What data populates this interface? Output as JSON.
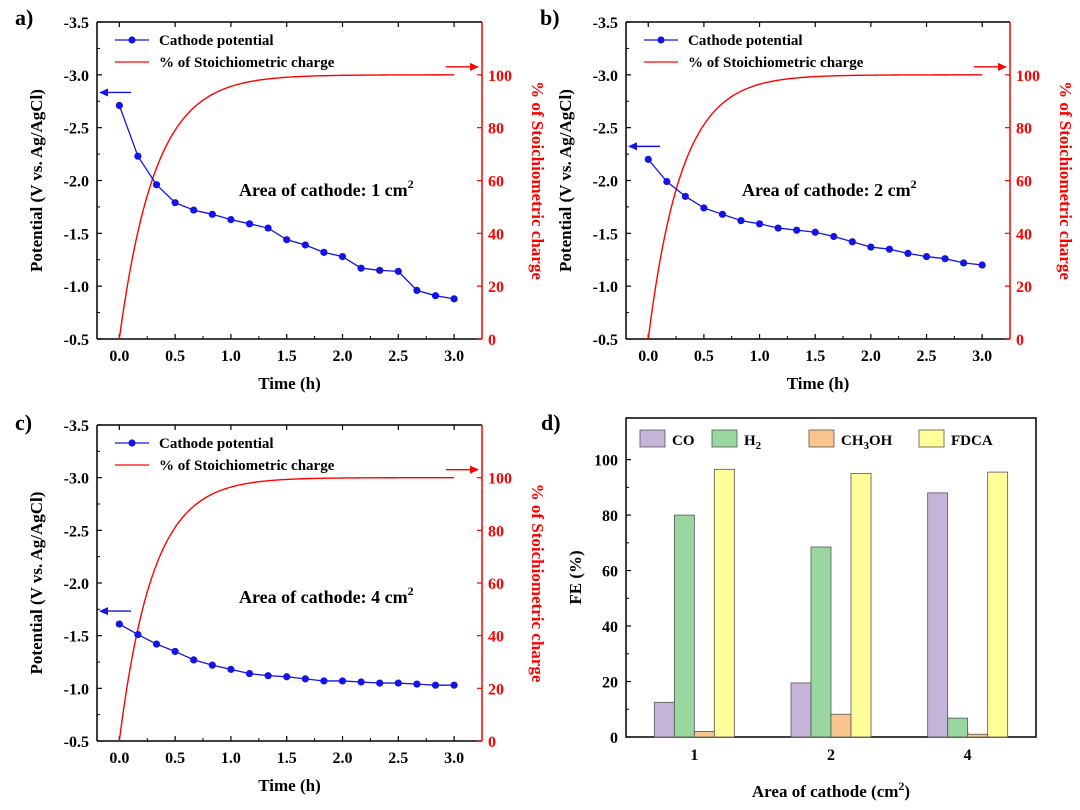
{
  "chart_data": [
    {
      "type": "line",
      "panel_label": "a)",
      "xlabel": "Time (h)",
      "ylabel_left": "Potential (V vs. Ag/AgCl)",
      "ylabel_right": "% of Stoichiometric charge",
      "xlim": [
        -0.2,
        3.25
      ],
      "ylim_left": [
        -0.5,
        -3.5
      ],
      "ylim_right": [
        0,
        120
      ],
      "x_ticks": [
        "0.0",
        "0.5",
        "1.0",
        "1.5",
        "2.0",
        "2.5",
        "3.0"
      ],
      "y_ticks_left": [
        "-0.5",
        "-1.0",
        "-1.5",
        "-2.0",
        "-2.5",
        "-3.0",
        "-3.5"
      ],
      "y_ticks_right": [
        "0",
        "20",
        "40",
        "60",
        "80",
        "100"
      ],
      "annotation": {
        "text": "Area of cathode:  1 cm",
        "sup": "2"
      },
      "legend": [
        "Cathode potential",
        "% of Stoichiometric charge"
      ],
      "series": [
        {
          "name": "Cathode potential",
          "axis": "left",
          "color": "#1414e6",
          "x": [
            0,
            0.1667,
            0.3333,
            0.5,
            0.6667,
            0.8333,
            1.0,
            1.1667,
            1.3333,
            1.5,
            1.6667,
            1.8333,
            2.0,
            2.1667,
            2.3333,
            2.5,
            2.6667,
            2.8333,
            3.0
          ],
          "y": [
            -2.71,
            -2.23,
            -1.96,
            -1.79,
            -1.72,
            -1.68,
            -1.63,
            -1.59,
            -1.55,
            -1.44,
            -1.39,
            -1.32,
            -1.28,
            -1.17,
            -1.15,
            -1.14,
            -0.96,
            -0.91,
            -0.88
          ]
        },
        {
          "name": "% of Stoichiometric charge",
          "axis": "right",
          "color": "#ff0000",
          "curve": "100*(1-exp(-t/0.32))",
          "t_max": 3.0
        }
      ]
    },
    {
      "type": "line",
      "panel_label": "b)",
      "xlabel": "Time (h)",
      "ylabel_left": "Potential (V vs. Ag/AgCl)",
      "ylabel_right": "% of Stoichiometric charge",
      "xlim": [
        -0.2,
        3.25
      ],
      "ylim_left": [
        -0.5,
        -3.5
      ],
      "ylim_right": [
        0,
        120
      ],
      "x_ticks": [
        "0.0",
        "0.5",
        "1.0",
        "1.5",
        "2.0",
        "2.5",
        "3.0"
      ],
      "y_ticks_left": [
        "-0.5",
        "-1.0",
        "-1.5",
        "-2.0",
        "-2.5",
        "-3.0",
        "-3.5"
      ],
      "y_ticks_right": [
        "0",
        "20",
        "40",
        "60",
        "80",
        "100"
      ],
      "annotation": {
        "text": "Area of cathode:  2 cm",
        "sup": "2"
      },
      "legend": [
        "Cathode potential",
        "% of Stoichiometric charge"
      ],
      "series": [
        {
          "name": "Cathode potential",
          "axis": "left",
          "color": "#1414e6",
          "x": [
            0,
            0.1667,
            0.3333,
            0.5,
            0.6667,
            0.8333,
            1.0,
            1.1667,
            1.3333,
            1.5,
            1.6667,
            1.8333,
            2.0,
            2.1667,
            2.3333,
            2.5,
            2.6667,
            2.8333,
            3.0
          ],
          "y": [
            -2.2,
            -1.99,
            -1.85,
            -1.74,
            -1.68,
            -1.62,
            -1.59,
            -1.55,
            -1.53,
            -1.51,
            -1.47,
            -1.42,
            -1.37,
            -1.35,
            -1.31,
            -1.28,
            -1.26,
            -1.22,
            -1.2
          ]
        },
        {
          "name": "% of Stoichiometric charge",
          "axis": "right",
          "color": "#ff0000",
          "curve": "100*(1-exp(-t/0.3))",
          "t_max": 3.0
        }
      ]
    },
    {
      "type": "line",
      "panel_label": "c)",
      "xlabel": "Time (h)",
      "ylabel_left": "Potential (V vs. Ag/AgCl)",
      "ylabel_right": "% of Stoichiometric charge",
      "xlim": [
        -0.2,
        3.25
      ],
      "ylim_left": [
        -0.5,
        -3.5
      ],
      "ylim_right": [
        0,
        120
      ],
      "x_ticks": [
        "0.0",
        "0.5",
        "1.0",
        "1.5",
        "2.0",
        "2.5",
        "3.0"
      ],
      "y_ticks_left": [
        "-0.5",
        "-1.0",
        "-1.5",
        "-2.0",
        "-2.5",
        "-3.0",
        "-3.5"
      ],
      "y_ticks_right": [
        "0",
        "20",
        "40",
        "60",
        "80",
        "100"
      ],
      "annotation": {
        "text": "Area of cathode:  4 cm",
        "sup": "2"
      },
      "legend": [
        "Cathode potential",
        "% of Stoichiometric charge"
      ],
      "series": [
        {
          "name": "Cathode potential",
          "axis": "left",
          "color": "#1414e6",
          "x": [
            0,
            0.1667,
            0.3333,
            0.5,
            0.6667,
            0.8333,
            1.0,
            1.1667,
            1.3333,
            1.5,
            1.6667,
            1.8333,
            2.0,
            2.1667,
            2.3333,
            2.5,
            2.6667,
            2.8333,
            3.0
          ],
          "y": [
            -1.61,
            -1.51,
            -1.42,
            -1.35,
            -1.27,
            -1.22,
            -1.18,
            -1.14,
            -1.12,
            -1.11,
            -1.09,
            -1.07,
            -1.07,
            -1.06,
            -1.05,
            -1.05,
            -1.04,
            -1.03,
            -1.03
          ]
        },
        {
          "name": "% of Stoichiometric charge",
          "axis": "right",
          "color": "#ff0000",
          "curve": "100*(1-exp(-t/0.3))",
          "t_max": 3.0
        }
      ]
    },
    {
      "type": "bar",
      "panel_label": "d)",
      "xlabel": "Area of cathode (cm",
      "xlabel_sup": "2",
      "xlabel_end": ")",
      "ylabel": "FE (%)",
      "ylim": [
        0,
        115
      ],
      "y_ticks": [
        "0",
        "20",
        "40",
        "60",
        "80",
        "100"
      ],
      "categories": [
        "1",
        "2",
        "4"
      ],
      "series": [
        {
          "name": "CO",
          "color": "#c6b3d8",
          "values": [
            12.5,
            19.5,
            88
          ]
        },
        {
          "name": "H2",
          "label_main": "H",
          "label_sub": "2",
          "color": "#99d6a0",
          "values": [
            80,
            68.5,
            6.8
          ]
        },
        {
          "name": "CH3OH",
          "label_main": "CH",
          "label_sub": "3",
          "label_tail": "OH",
          "color": "#f9c690",
          "values": [
            2,
            8.2,
            1
          ]
        },
        {
          "name": "FDCA",
          "color": "#ffff99",
          "values": [
            96.5,
            95,
            95.5
          ]
        }
      ]
    }
  ]
}
